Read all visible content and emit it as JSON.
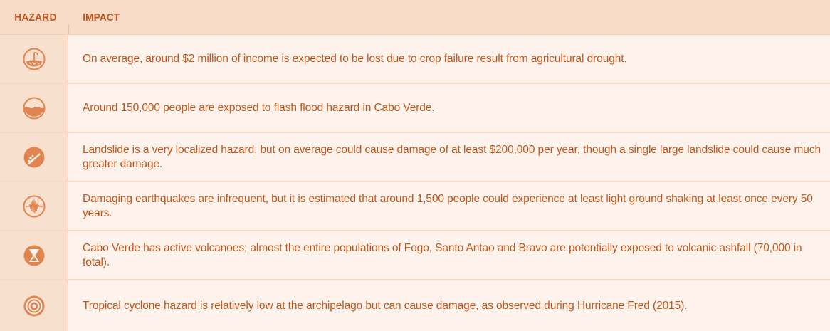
{
  "header": {
    "hazard": "HAZARD",
    "impact": "IMPACT"
  },
  "rows": [
    {
      "icon": "drought-icon",
      "text": "On average, around $2 million of income is expected to be lost due to crop failure result from agricultural drought."
    },
    {
      "icon": "flood-icon",
      "text": "Around 150,000 people are exposed to flash flood hazard in Cabo Verde."
    },
    {
      "icon": "landslide-icon",
      "text": "Landslide is a very localized hazard, but on average could cause damage of at least $200,000 per year, though a single large landslide could cause much greater damage."
    },
    {
      "icon": "earthquake-icon",
      "text": "Damaging earthquakes are infrequent, but it is estimated that around 1,500 people could experience at least light ground shaking at least once every 50 years."
    },
    {
      "icon": "volcano-icon",
      "text": "Cabo Verde has active volcanoes; almost the entire populations of Fogo, Santo Antao and Bravo are potentially exposed to volcanic ashfall (70,000 in total)."
    },
    {
      "icon": "cyclone-icon",
      "text": "Tropical cyclone hazard is relatively low at the archipelago but can cause damage, as observed during Hurricane Fred (2015)."
    }
  ],
  "colors": {
    "accent": "#c2571d",
    "icon": "#e0854f",
    "header_bg": "#f8dcc9",
    "icon_cell_bg": "#f8e0cf",
    "row_bg": "#fdf3ec"
  }
}
